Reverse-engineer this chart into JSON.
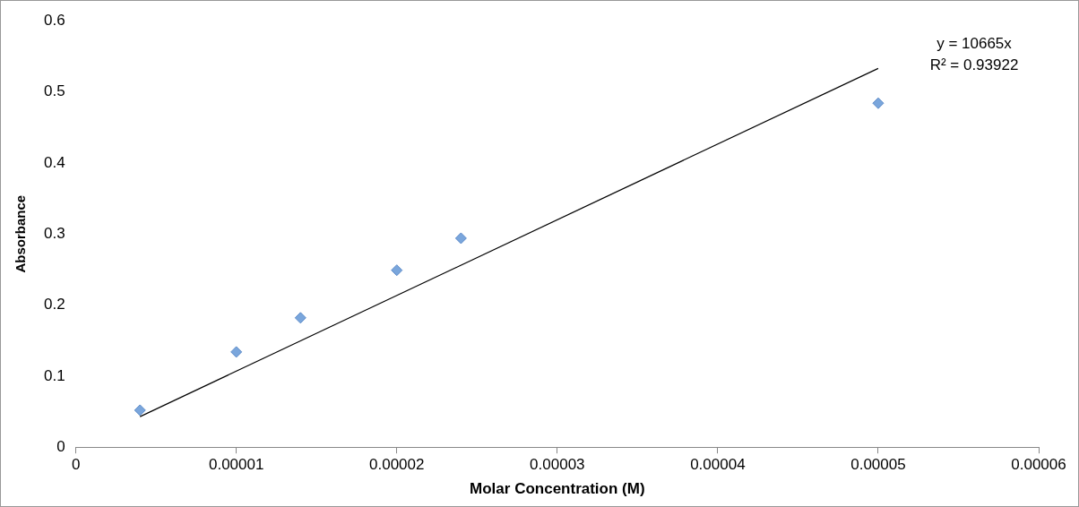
{
  "chart_data": {
    "type": "scatter",
    "xlabel": "Molar Concentration (M)",
    "ylabel": "Absorbance",
    "xlim": [
      0,
      6e-05
    ],
    "xticks": [
      0,
      {
        "value": 1e-05,
        "label": "0.00001"
      },
      {
        "value": 2e-05,
        "label": "0.00002"
      },
      {
        "value": 3e-05,
        "label": "0.00003"
      },
      {
        "value": 4e-05,
        "label": "0.00004"
      },
      {
        "value": 5e-05,
        "label": "0.00005"
      },
      {
        "value": 6e-05,
        "label": "0.00006"
      }
    ],
    "ylim": [
      0,
      0.6
    ],
    "yticks": [
      0,
      0.1,
      0.2,
      0.3,
      0.4,
      0.5,
      0.6
    ],
    "grid": false,
    "legend": false,
    "marker": "diamond",
    "series": [
      {
        "type": "scatter",
        "color": "#7aa6dc",
        "x": [
          4e-06,
          1e-05,
          1.4e-05,
          2e-05,
          2.4e-05,
          5e-05
        ],
        "values": [
          0.052,
          0.134,
          0.182,
          0.249,
          0.294,
          0.484
        ]
      },
      {
        "type": "line",
        "color": "#000000",
        "marker": "none",
        "x": [
          4e-06,
          5e-05
        ],
        "values": [
          0.043,
          0.533
        ]
      }
    ],
    "annotations": [
      "y = 10665x",
      "R² = 0.93922"
    ]
  }
}
